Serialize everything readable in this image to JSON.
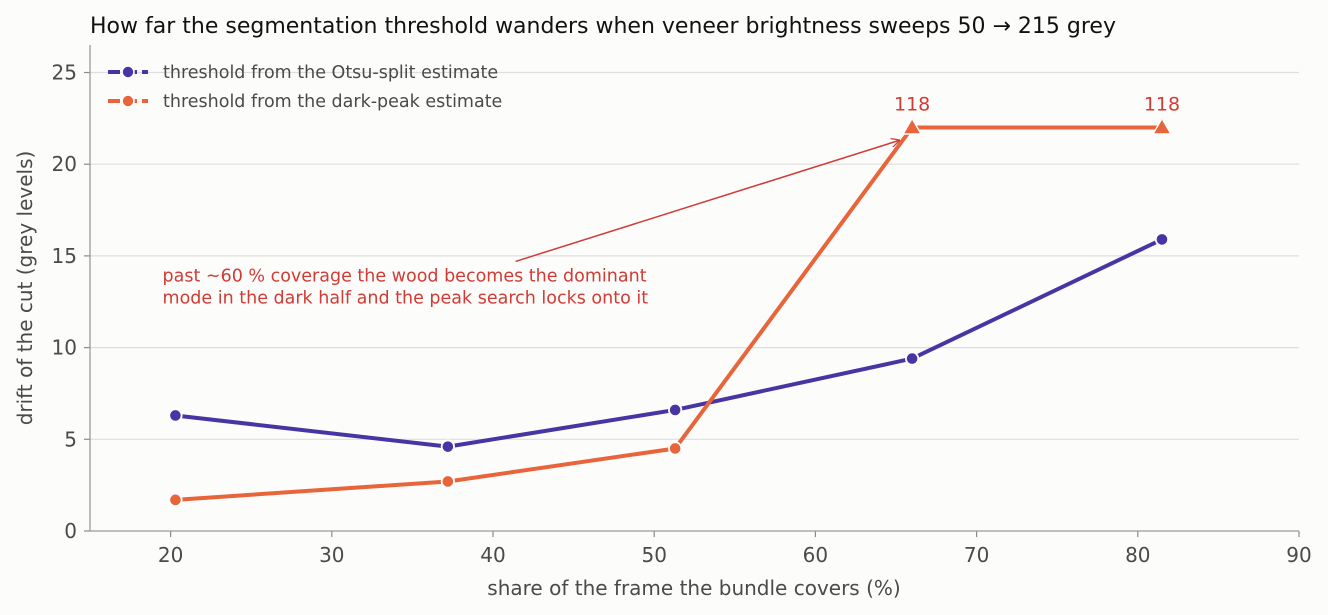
{
  "chart_data": {
    "type": "line",
    "title": "How far the segmentation threshold wanders when veneer brightness sweeps 50 → 215 grey",
    "xlabel": "share of the frame the bundle covers (%)",
    "ylabel": "drift of the cut (grey levels)",
    "xlim": [
      15,
      90
    ],
    "ylim": [
      0,
      26.5
    ],
    "xticks": [
      20,
      30,
      40,
      50,
      60,
      70,
      80,
      90
    ],
    "yticks": [
      0,
      5,
      10,
      15,
      20,
      25
    ],
    "grid": "horizontal",
    "legend_position": "top-left",
    "series": [
      {
        "name": "threshold from the Otsu-split estimate",
        "color": "#4636a4",
        "marker": "circle",
        "points": [
          {
            "x": 20.3,
            "y": 6.3
          },
          {
            "x": 37.2,
            "y": 4.6
          },
          {
            "x": 51.3,
            "y": 6.6
          },
          {
            "x": 66.0,
            "y": 9.4
          },
          {
            "x": 81.5,
            "y": 15.9
          }
        ]
      },
      {
        "name": "threshold from the dark-peak estimate",
        "color": "#e8643a",
        "marker": "circle",
        "points": [
          {
            "x": 20.3,
            "y": 1.7
          },
          {
            "x": 37.2,
            "y": 2.7
          },
          {
            "x": 51.3,
            "y": 4.5
          },
          {
            "x": 66.0,
            "y": 22.0,
            "marker": "triangle",
            "label": "118"
          },
          {
            "x": 81.5,
            "y": 22.0,
            "marker": "triangle",
            "label": "118"
          }
        ]
      }
    ],
    "annotation": {
      "lines": [
        "past ~60 % coverage the wood becomes the dominant",
        "mode in the dark half and the peak search locks onto it"
      ],
      "color": "#d13b36",
      "text_at": {
        "x": 19.5,
        "y": 13.6
      },
      "arrow_from": {
        "x": 41.4,
        "y": 14.7
      },
      "arrow_to": {
        "x": 65.2,
        "y": 21.3
      }
    }
  }
}
